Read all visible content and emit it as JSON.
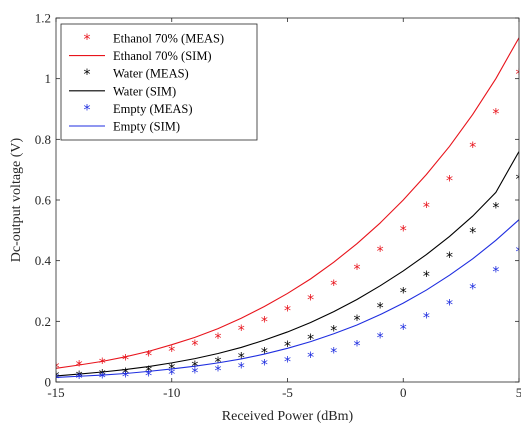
{
  "chart_data": {
    "type": "scatter",
    "title": "",
    "xlabel": "Received Power (dBm)",
    "ylabel": "Dc-output voltage (V)",
    "xlim": [
      -15,
      5
    ],
    "ylim": [
      0,
      1.2
    ],
    "x_ticks": [
      "-15",
      "-10",
      "-5",
      "0",
      "5"
    ],
    "y_ticks": [
      "0",
      "0.2",
      "0.4",
      "0.6",
      "0.8",
      "1",
      "1.2"
    ],
    "x_tick_values": [
      -15,
      -10,
      -5,
      0,
      5
    ],
    "y_tick_values": [
      0,
      0.2,
      0.4,
      0.6,
      0.8,
      1.0,
      1.2
    ],
    "grid": false,
    "legend_position": "top-left",
    "series": [
      {
        "name": "Ethanol 70% (MEAS)",
        "kind": "markers",
        "marker": "star",
        "color": "#e8141c",
        "x": [
          -15,
          -14,
          -13,
          -12,
          -11,
          -10,
          -9,
          -8,
          -7,
          -6,
          -5,
          -4,
          -3,
          -2,
          -1,
          0,
          1,
          2,
          3,
          4,
          5
        ],
        "y": [
          0.047,
          0.054,
          0.063,
          0.075,
          0.087,
          0.103,
          0.122,
          0.145,
          0.172,
          0.2,
          0.235,
          0.272,
          0.32,
          0.372,
          0.432,
          0.5,
          0.577,
          0.665,
          0.775,
          0.885,
          1.015
        ]
      },
      {
        "name": "Ethanol 70% (SIM)",
        "kind": "line",
        "color": "#e8141c",
        "x": [
          -15,
          -14,
          -13,
          -12,
          -11,
          -10,
          -9,
          -8,
          -7,
          -6,
          -5,
          -4,
          -3,
          -2,
          -1,
          0,
          1,
          2,
          3,
          4,
          5
        ],
        "y": [
          0.045,
          0.056,
          0.068,
          0.083,
          0.101,
          0.123,
          0.147,
          0.176,
          0.21,
          0.249,
          0.292,
          0.34,
          0.395,
          0.456,
          0.524,
          0.6,
          0.684,
          0.777,
          0.882,
          1.0,
          1.135
        ]
      },
      {
        "name": "Water (MEAS)",
        "kind": "markers",
        "marker": "star",
        "color": "#000000",
        "x": [
          -15,
          -14,
          -13,
          -12,
          -11,
          -10,
          -9,
          -8,
          -7,
          -6,
          -5,
          -4,
          -3,
          -2,
          -1,
          0,
          1,
          2,
          3,
          4,
          5
        ],
        "y": [
          0.018,
          0.02,
          0.024,
          0.03,
          0.036,
          0.044,
          0.053,
          0.066,
          0.08,
          0.097,
          0.118,
          0.142,
          0.17,
          0.205,
          0.245,
          0.295,
          0.35,
          0.412,
          0.493,
          0.575,
          0.67
        ]
      },
      {
        "name": "Water (SIM)",
        "kind": "line",
        "color": "#000000",
        "x": [
          -15,
          -14,
          -13,
          -12,
          -11,
          -10,
          -9,
          -8,
          -7,
          -6,
          -5,
          -4,
          -3,
          -2,
          -1,
          0,
          1,
          2,
          3,
          4,
          5
        ],
        "y": [
          0.02,
          0.026,
          0.033,
          0.041,
          0.051,
          0.063,
          0.077,
          0.094,
          0.114,
          0.138,
          0.165,
          0.196,
          0.232,
          0.272,
          0.317,
          0.366,
          0.42,
          0.48,
          0.547,
          0.625,
          0.76
        ]
      },
      {
        "name": "Empty (MEAS)",
        "kind": "markers",
        "marker": "star",
        "color": "#1f2ee0",
        "x": [
          -15,
          -14,
          -13,
          -12,
          -11,
          -10,
          -9,
          -8,
          -7,
          -6,
          -5,
          -4,
          -3,
          -2,
          -1,
          0,
          1,
          2,
          3,
          4,
          5
        ],
        "y": [
          0.012,
          0.013,
          0.015,
          0.018,
          0.022,
          0.026,
          0.031,
          0.038,
          0.047,
          0.058,
          0.068,
          0.082,
          0.098,
          0.12,
          0.147,
          0.175,
          0.212,
          0.255,
          0.308,
          0.365,
          0.43
        ]
      },
      {
        "name": "Empty (SIM)",
        "kind": "line",
        "color": "#1f2ee0",
        "x": [
          -15,
          -14,
          -13,
          -12,
          -11,
          -10,
          -9,
          -8,
          -7,
          -6,
          -5,
          -4,
          -3,
          -2,
          -1,
          0,
          1,
          2,
          3,
          4,
          5
        ],
        "y": [
          0.015,
          0.019,
          0.023,
          0.028,
          0.035,
          0.043,
          0.052,
          0.063,
          0.076,
          0.092,
          0.111,
          0.133,
          0.159,
          0.188,
          0.222,
          0.26,
          0.303,
          0.352,
          0.406,
          0.467,
          0.535
        ]
      }
    ]
  }
}
